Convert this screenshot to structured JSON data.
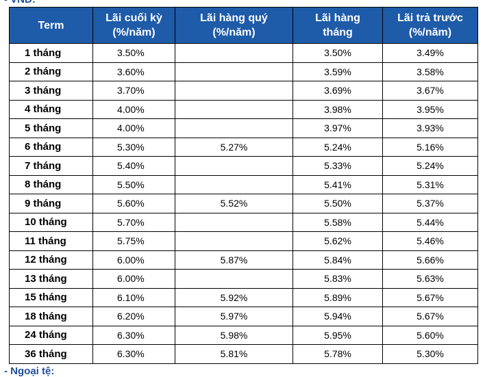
{
  "heading": "- VND:",
  "footer": "- Ngoại tệ:",
  "table": {
    "headers": [
      {
        "line1": "Term",
        "line2": ""
      },
      {
        "line1": "Lãi cuối kỳ",
        "line2": "(%/năm)"
      },
      {
        "line1": "Lãi hàng quý",
        "line2": "(%/năm)"
      },
      {
        "line1": "Lãi hàng",
        "line2": "tháng"
      },
      {
        "line1": "Lãi trả trước",
        "line2": "(%/năm)"
      }
    ],
    "rows": [
      {
        "term": "1 tháng",
        "end": "3.50%",
        "quarterly": "",
        "monthly": "3.50%",
        "upfront": "3.49%"
      },
      {
        "term": "2 tháng",
        "end": "3.60%",
        "quarterly": "",
        "monthly": "3.59%",
        "upfront": "3.58%"
      },
      {
        "term": "3 tháng",
        "end": "3.70%",
        "quarterly": "",
        "monthly": "3.69%",
        "upfront": "3.67%"
      },
      {
        "term": "4 tháng",
        "end": "4.00%",
        "quarterly": "",
        "monthly": "3.98%",
        "upfront": "3.95%"
      },
      {
        "term": "5 tháng",
        "end": "4.00%",
        "quarterly": "",
        "monthly": "3.97%",
        "upfront": "3.93%"
      },
      {
        "term": "6 tháng",
        "end": "5.30%",
        "quarterly": "5.27%",
        "monthly": "5.24%",
        "upfront": "5.16%"
      },
      {
        "term": "7 tháng",
        "end": "5.40%",
        "quarterly": "",
        "monthly": "5.33%",
        "upfront": "5.24%"
      },
      {
        "term": "8 tháng",
        "end": "5.50%",
        "quarterly": "",
        "monthly": "5.41%",
        "upfront": "5.31%"
      },
      {
        "term": "9 tháng",
        "end": "5.60%",
        "quarterly": "5.52%",
        "monthly": "5.50%",
        "upfront": "5.37%"
      },
      {
        "term": "10 tháng",
        "end": "5.70%",
        "quarterly": "",
        "monthly": "5.58%",
        "upfront": "5.44%"
      },
      {
        "term": "11 tháng",
        "end": "5.75%",
        "quarterly": "",
        "monthly": "5.62%",
        "upfront": "5.46%"
      },
      {
        "term": "12 tháng",
        "end": "6.00%",
        "quarterly": "5.87%",
        "monthly": "5.84%",
        "upfront": "5.66%"
      },
      {
        "term": "13 tháng",
        "end": "6.00%",
        "quarterly": "",
        "monthly": "5.83%",
        "upfront": "5.63%"
      },
      {
        "term": "15 tháng",
        "end": "6.10%",
        "quarterly": "5.92%",
        "monthly": "5.89%",
        "upfront": "5.67%"
      },
      {
        "term": "18 tháng",
        "end": "6.20%",
        "quarterly": "5.97%",
        "monthly": "5.94%",
        "upfront": "5.67%"
      },
      {
        "term": "24 tháng",
        "end": "6.30%",
        "quarterly": "5.98%",
        "monthly": "5.95%",
        "upfront": "5.60%"
      },
      {
        "term": "36 tháng",
        "end": "6.30%",
        "quarterly": "5.81%",
        "monthly": "5.78%",
        "upfront": "5.30%"
      }
    ]
  },
  "colors": {
    "header_background": "#1e5ba8",
    "header_text": "#ffffff",
    "heading_text": "#1f4e9c",
    "border": "#000000"
  }
}
